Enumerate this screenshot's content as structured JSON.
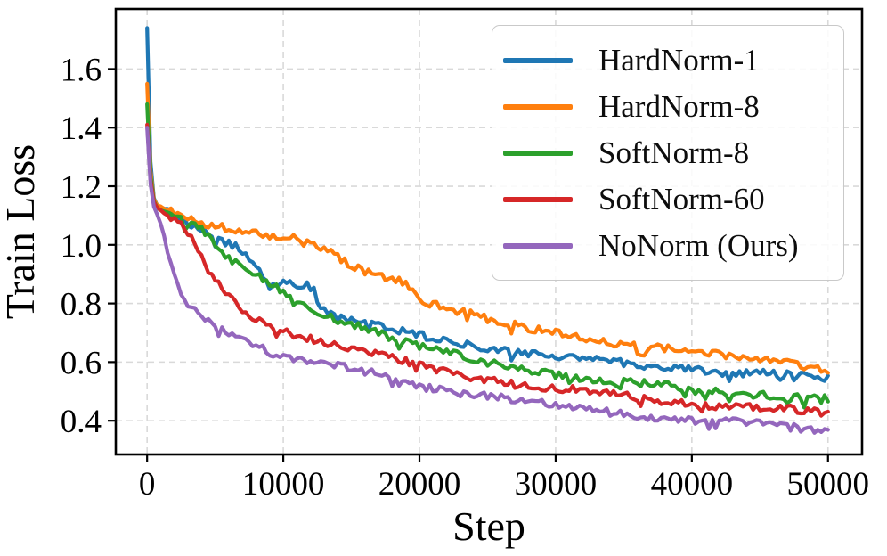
{
  "figure": {
    "background": "#ffffff",
    "spine_color": "#000000",
    "grid_color": "#d9d9d9",
    "tick_color": "#000000",
    "legend_border_color": "#c9c9c9"
  },
  "chart_data": {
    "type": "line",
    "title": "",
    "xlabel": "Step",
    "ylabel": "Train Loss",
    "xlim": [
      -2300,
      52500
    ],
    "ylim": [
      0.285,
      1.805
    ],
    "grid": true,
    "legend_position": "upper right",
    "xticks": [
      0,
      10000,
      20000,
      30000,
      40000,
      50000
    ],
    "xtick_labels": [
      "0",
      "10000",
      "20000",
      "30000",
      "40000",
      "50000"
    ],
    "yticks": [
      0.4,
      0.6,
      0.8,
      1.0,
      1.2,
      1.4,
      1.6
    ],
    "ytick_labels": [
      "0.4",
      "0.6",
      "0.8",
      "1.0",
      "1.2",
      "1.4",
      "1.6"
    ],
    "series": [
      {
        "name": "HardNorm-1",
        "color": "#1f77b4",
        "points": [
          [
            0,
            1.74
          ],
          [
            150,
            1.45
          ],
          [
            300,
            1.2
          ],
          [
            500,
            1.16
          ],
          [
            800,
            1.13
          ],
          [
            1500,
            1.115
          ],
          [
            2500,
            1.085
          ],
          [
            3500,
            1.055
          ],
          [
            4500,
            1.035
          ],
          [
            5500,
            1.01
          ],
          [
            6500,
            0.995
          ],
          [
            7200,
            0.97
          ],
          [
            8000,
            0.93
          ],
          [
            8600,
            0.885
          ],
          [
            9500,
            0.875
          ],
          [
            10500,
            0.87
          ],
          [
            11500,
            0.868
          ],
          [
            12200,
            0.855
          ],
          [
            12600,
            0.79
          ],
          [
            13200,
            0.77
          ],
          [
            14000,
            0.75
          ],
          [
            15000,
            0.74
          ],
          [
            16000,
            0.735
          ],
          [
            17000,
            0.72
          ],
          [
            18000,
            0.71
          ],
          [
            19000,
            0.7
          ],
          [
            20000,
            0.69
          ],
          [
            21500,
            0.675
          ],
          [
            23000,
            0.665
          ],
          [
            25000,
            0.65
          ],
          [
            27000,
            0.64
          ],
          [
            29000,
            0.625
          ],
          [
            30000,
            0.62
          ],
          [
            32000,
            0.61
          ],
          [
            34000,
            0.6
          ],
          [
            36000,
            0.592
          ],
          [
            38000,
            0.585
          ],
          [
            40000,
            0.578
          ],
          [
            42000,
            0.568
          ],
          [
            44000,
            0.562
          ],
          [
            46000,
            0.556
          ],
          [
            48000,
            0.55
          ],
          [
            50000,
            0.545
          ]
        ]
      },
      {
        "name": "HardNorm-8",
        "color": "#ff7f0e",
        "points": [
          [
            0,
            1.55
          ],
          [
            150,
            1.38
          ],
          [
            300,
            1.19
          ],
          [
            500,
            1.155
          ],
          [
            800,
            1.13
          ],
          [
            1500,
            1.12
          ],
          [
            2500,
            1.105
          ],
          [
            3500,
            1.085
          ],
          [
            5000,
            1.068
          ],
          [
            6500,
            1.055
          ],
          [
            8000,
            1.042
          ],
          [
            9500,
            1.03
          ],
          [
            11000,
            1.025
          ],
          [
            12000,
            1.01
          ],
          [
            13000,
            0.985
          ],
          [
            14000,
            0.955
          ],
          [
            15000,
            0.925
          ],
          [
            16000,
            0.905
          ],
          [
            17000,
            0.895
          ],
          [
            18000,
            0.885
          ],
          [
            18800,
            0.875
          ],
          [
            19600,
            0.845
          ],
          [
            20300,
            0.815
          ],
          [
            21000,
            0.8
          ],
          [
            22000,
            0.79
          ],
          [
            23000,
            0.775
          ],
          [
            24000,
            0.762
          ],
          [
            25000,
            0.745
          ],
          [
            26000,
            0.732
          ],
          [
            27000,
            0.722
          ],
          [
            28000,
            0.712
          ],
          [
            29500,
            0.702
          ],
          [
            31000,
            0.69
          ],
          [
            33000,
            0.675
          ],
          [
            35000,
            0.663
          ],
          [
            37000,
            0.652
          ],
          [
            39000,
            0.643
          ],
          [
            40000,
            0.637
          ],
          [
            42000,
            0.622
          ],
          [
            44000,
            0.612
          ],
          [
            46000,
            0.602
          ],
          [
            48000,
            0.592
          ],
          [
            50000,
            0.578
          ]
        ]
      },
      {
        "name": "SoftNorm-8",
        "color": "#2ca02c",
        "points": [
          [
            0,
            1.48
          ],
          [
            150,
            1.35
          ],
          [
            300,
            1.18
          ],
          [
            500,
            1.15
          ],
          [
            800,
            1.12
          ],
          [
            1500,
            1.105
          ],
          [
            2500,
            1.09
          ],
          [
            3500,
            1.065
          ],
          [
            4300,
            1.045
          ],
          [
            5000,
            1.0
          ],
          [
            5600,
            0.965
          ],
          [
            6300,
            0.94
          ],
          [
            7000,
            0.925
          ],
          [
            7800,
            0.905
          ],
          [
            8600,
            0.875
          ],
          [
            9400,
            0.855
          ],
          [
            10000,
            0.84
          ],
          [
            10800,
            0.8
          ],
          [
            11600,
            0.785
          ],
          [
            12500,
            0.775
          ],
          [
            13500,
            0.755
          ],
          [
            14500,
            0.735
          ],
          [
            15500,
            0.725
          ],
          [
            16500,
            0.71
          ],
          [
            17500,
            0.695
          ],
          [
            18500,
            0.675
          ],
          [
            19500,
            0.66
          ],
          [
            20000,
            0.652
          ],
          [
            21500,
            0.638
          ],
          [
            23000,
            0.618
          ],
          [
            24500,
            0.6
          ],
          [
            26000,
            0.588
          ],
          [
            28000,
            0.572
          ],
          [
            30000,
            0.56
          ],
          [
            32000,
            0.55
          ],
          [
            34000,
            0.537
          ],
          [
            36000,
            0.527
          ],
          [
            38000,
            0.518
          ],
          [
            40000,
            0.508
          ],
          [
            42000,
            0.5
          ],
          [
            44000,
            0.494
          ],
          [
            46000,
            0.488
          ],
          [
            48000,
            0.478
          ],
          [
            50000,
            0.472
          ]
        ]
      },
      {
        "name": "SoftNorm-60",
        "color": "#d62728",
        "points": [
          [
            0,
            1.41
          ],
          [
            150,
            1.32
          ],
          [
            300,
            1.17
          ],
          [
            500,
            1.145
          ],
          [
            800,
            1.12
          ],
          [
            1500,
            1.1
          ],
          [
            2200,
            1.08
          ],
          [
            2800,
            1.05
          ],
          [
            3200,
            1.02
          ],
          [
            3600,
            0.99
          ],
          [
            4000,
            0.955
          ],
          [
            4400,
            0.92
          ],
          [
            4800,
            0.89
          ],
          [
            5200,
            0.865
          ],
          [
            5600,
            0.843
          ],
          [
            6000,
            0.822
          ],
          [
            6500,
            0.795
          ],
          [
            7000,
            0.778
          ],
          [
            7500,
            0.762
          ],
          [
            8200,
            0.742
          ],
          [
            9000,
            0.725
          ],
          [
            10000,
            0.708
          ],
          [
            11000,
            0.697
          ],
          [
            12000,
            0.684
          ],
          [
            13000,
            0.672
          ],
          [
            14000,
            0.66
          ],
          [
            15000,
            0.648
          ],
          [
            16000,
            0.635
          ],
          [
            17000,
            0.622
          ],
          [
            18000,
            0.61
          ],
          [
            19000,
            0.598
          ],
          [
            20000,
            0.583
          ],
          [
            21500,
            0.57
          ],
          [
            23000,
            0.558
          ],
          [
            24500,
            0.547
          ],
          [
            26000,
            0.536
          ],
          [
            28000,
            0.522
          ],
          [
            30000,
            0.511
          ],
          [
            32000,
            0.5
          ],
          [
            34000,
            0.489
          ],
          [
            36000,
            0.478
          ],
          [
            38000,
            0.469
          ],
          [
            40000,
            0.459
          ],
          [
            42000,
            0.451
          ],
          [
            44000,
            0.446
          ],
          [
            46000,
            0.44
          ],
          [
            48000,
            0.432
          ],
          [
            50000,
            0.425
          ]
        ]
      },
      {
        "name": "NoNorm (Ours)",
        "color": "#9467bd",
        "points": [
          [
            0,
            1.4
          ],
          [
            150,
            1.3
          ],
          [
            300,
            1.16
          ],
          [
            500,
            1.13
          ],
          [
            800,
            1.095
          ],
          [
            1100,
            1.055
          ],
          [
            1400,
            0.995
          ],
          [
            1700,
            0.935
          ],
          [
            2000,
            0.89
          ],
          [
            2300,
            0.855
          ],
          [
            2600,
            0.825
          ],
          [
            2900,
            0.8
          ],
          [
            3200,
            0.787
          ],
          [
            3600,
            0.775
          ],
          [
            4000,
            0.758
          ],
          [
            4500,
            0.742
          ],
          [
            5000,
            0.724
          ],
          [
            5500,
            0.712
          ],
          [
            6000,
            0.7
          ],
          [
            6800,
            0.682
          ],
          [
            7600,
            0.662
          ],
          [
            8400,
            0.65
          ],
          [
            9200,
            0.628
          ],
          [
            10000,
            0.62
          ],
          [
            11000,
            0.61
          ],
          [
            12000,
            0.601
          ],
          [
            13000,
            0.592
          ],
          [
            14000,
            0.584
          ],
          [
            15000,
            0.576
          ],
          [
            16500,
            0.562
          ],
          [
            18000,
            0.548
          ],
          [
            19000,
            0.535
          ],
          [
            20000,
            0.52
          ],
          [
            21500,
            0.508
          ],
          [
            23000,
            0.497
          ],
          [
            24500,
            0.486
          ],
          [
            26000,
            0.476
          ],
          [
            28000,
            0.462
          ],
          [
            30000,
            0.451
          ],
          [
            32000,
            0.441
          ],
          [
            34000,
            0.431
          ],
          [
            36000,
            0.421
          ],
          [
            38000,
            0.411
          ],
          [
            40000,
            0.399
          ],
          [
            42000,
            0.398
          ],
          [
            44000,
            0.39
          ],
          [
            46000,
            0.384
          ],
          [
            48000,
            0.376
          ],
          [
            50000,
            0.369
          ]
        ]
      }
    ]
  }
}
